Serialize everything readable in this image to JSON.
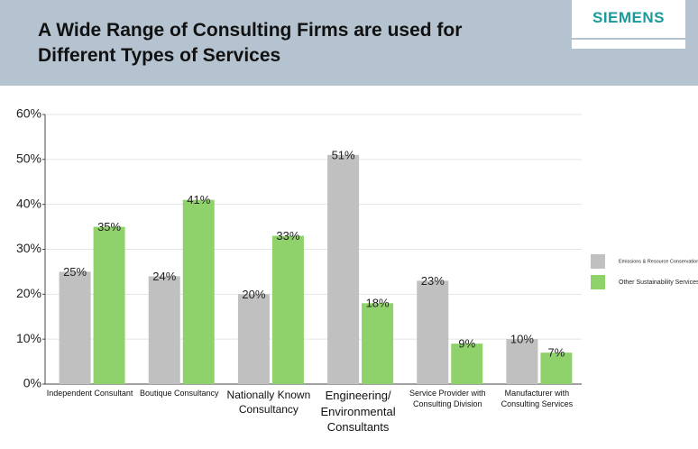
{
  "brand": "SIEMENS",
  "chart_data": {
    "type": "bar",
    "title": "A Wide Range of Consulting Firms are used for Different Types of Services",
    "categories": [
      "Independent Consultant",
      "Boutique Consultancy",
      "Nationally Known\nConsultancy",
      "Engineering/\nEnvironmental\nConsultants",
      "Service Provider with\nConsulting Division",
      "Manufacturer with\nConsulting Services"
    ],
    "series": [
      {
        "name": "Emissions & Resource Conservation",
        "color": "#c0c0c0",
        "values": [
          25,
          24,
          20,
          51,
          23,
          10
        ],
        "value_labels": [
          "25%",
          "24%",
          "20%",
          "51%",
          "23%",
          "10%"
        ]
      },
      {
        "name": "Other Sustainability Services",
        "color": "#8fd16a",
        "values": [
          35,
          41,
          33,
          18,
          9,
          7
        ],
        "value_labels": [
          "35%",
          "41%",
          "33%",
          "18%",
          "9%",
          "7%"
        ]
      }
    ],
    "ylim": [
      0,
      60
    ],
    "yticks": [
      {
        "value": 0,
        "label": "0%"
      },
      {
        "value": 10,
        "label": "10%"
      },
      {
        "value": 20,
        "label": "20%"
      },
      {
        "value": 30,
        "label": "30%"
      },
      {
        "value": 40,
        "label": "40%"
      },
      {
        "value": 50,
        "label": "50%"
      },
      {
        "value": 60,
        "label": "60%"
      }
    ],
    "grid": true,
    "legend": "right"
  }
}
